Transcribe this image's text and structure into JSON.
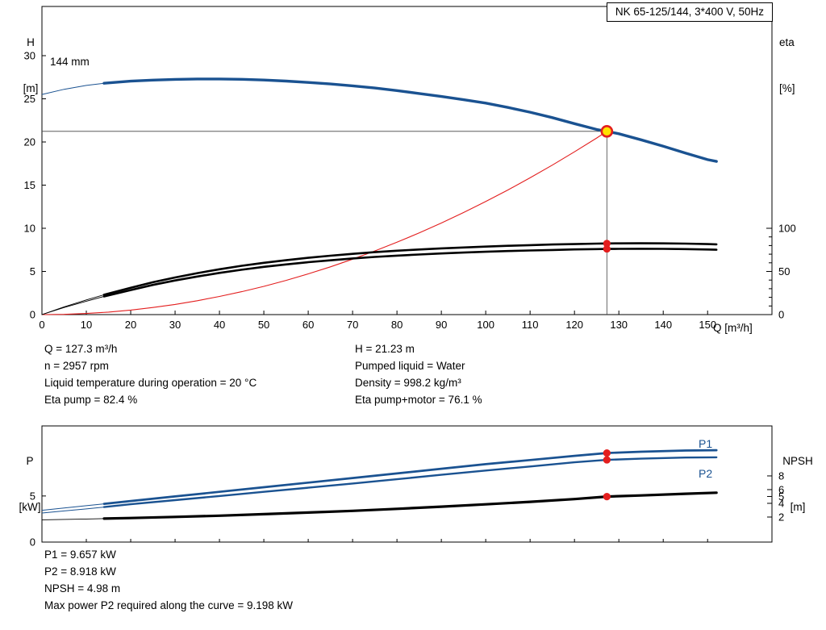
{
  "title_box": {
    "label": "NK 65-125/144, 3*400 V, 50Hz"
  },
  "colors": {
    "blue": "#1A5291",
    "red": "#E31E1E",
    "black": "#000000",
    "yellow": "#FFE200",
    "guide": "#444444"
  },
  "axis_labels": {
    "h": "H",
    "h_unit": "[m]",
    "eta": "eta",
    "eta_unit": "[%]",
    "q": "Q [m³/h]",
    "p": "P",
    "p_unit": "[kW]",
    "npsh": "NPSH",
    "npsh_unit": "[m]"
  },
  "curve_labels": {
    "impeller": "144 mm",
    "p1": "P1",
    "p2": "P2"
  },
  "duty_info": {
    "left": [
      "Q = 127.3 m³/h",
      "n = 2957 rpm",
      "Liquid temperature during operation = 20 °C",
      "Eta pump = 82.4 %"
    ],
    "right": [
      "H = 21.23 m",
      "Pumped liquid = Water",
      "Density = 998.2 kg/m³",
      "Eta pump+motor = 76.1 %"
    ]
  },
  "results_info": [
    "P1 = 9.657 kW",
    "P2 = 8.918 kW",
    "NPSH = 4.98 m",
    "Max power P2 required along the curve = 9.198 kW"
  ],
  "chart_data": [
    {
      "id": "qh-eta",
      "type": "line",
      "title": "NK 65-125/144, 3*400 V, 50Hz",
      "x_axis": {
        "label": "Q [m³/h]",
        "range": [
          0,
          164.5
        ],
        "ticks": [
          0,
          10,
          20,
          30,
          40,
          50,
          60,
          70,
          80,
          90,
          100,
          110,
          120,
          130,
          140,
          150
        ]
      },
      "y_left": {
        "label": "H [m]",
        "range": [
          0,
          35.7
        ],
        "ticks": [
          0,
          5,
          10,
          15,
          20,
          25,
          30
        ]
      },
      "y_right": {
        "label": "eta [%]",
        "ticks": [
          0,
          50,
          100
        ],
        "minor_step": 10,
        "h_per_percent": 0.1
      },
      "duty_point": {
        "q": 127.3,
        "h": 21.23
      },
      "series": [
        {
          "name": "head-144mm",
          "label": "144 mm",
          "color": "blue",
          "axis": "left",
          "thin": 1,
          "thick": 3.4,
          "thick_from": 14,
          "points": [
            [
              0,
              25.5
            ],
            [
              5,
              26.1
            ],
            [
              10,
              26.55
            ],
            [
              14,
              26.8
            ],
            [
              20,
              27.05
            ],
            [
              25,
              27.17
            ],
            [
              30,
              27.25
            ],
            [
              35,
              27.3
            ],
            [
              40,
              27.3
            ],
            [
              45,
              27.26
            ],
            [
              50,
              27.18
            ],
            [
              55,
              27.06
            ],
            [
              60,
              26.9
            ],
            [
              65,
              26.72
            ],
            [
              70,
              26.5
            ],
            [
              75,
              26.25
            ],
            [
              80,
              25.95
            ],
            [
              85,
              25.62
            ],
            [
              90,
              25.27
            ],
            [
              95,
              24.9
            ],
            [
              100,
              24.5
            ],
            [
              105,
              24.0
            ],
            [
              110,
              23.45
            ],
            [
              115,
              22.82
            ],
            [
              120,
              22.12
            ],
            [
              125,
              21.45
            ],
            [
              127.3,
              21.23
            ],
            [
              130,
              20.95
            ],
            [
              135,
              20.25
            ],
            [
              140,
              19.5
            ],
            [
              145,
              18.72
            ],
            [
              150,
              17.95
            ],
            [
              152,
              17.75
            ]
          ]
        },
        {
          "name": "iso-efficiency-parabola",
          "color": "red",
          "axis": "left",
          "thin": 1.1,
          "points": [
            [
              0,
              0
            ],
            [
              5,
              0.03
            ],
            [
              10,
              0.13
            ],
            [
              15,
              0.29
            ],
            [
              20,
              0.52
            ],
            [
              25,
              0.82
            ],
            [
              30,
              1.18
            ],
            [
              35,
              1.61
            ],
            [
              40,
              2.1
            ],
            [
              45,
              2.65
            ],
            [
              50,
              3.27
            ],
            [
              55,
              3.96
            ],
            [
              60,
              4.72
            ],
            [
              65,
              5.53
            ],
            [
              70,
              6.42
            ],
            [
              75,
              7.37
            ],
            [
              80,
              8.38
            ],
            [
              85,
              9.46
            ],
            [
              90,
              10.61
            ],
            [
              95,
              11.82
            ],
            [
              100,
              13.1
            ],
            [
              105,
              14.44
            ],
            [
              110,
              15.85
            ],
            [
              115,
              17.32
            ],
            [
              120,
              18.86
            ],
            [
              125,
              20.46
            ],
            [
              127.3,
              21.23
            ]
          ]
        },
        {
          "name": "eta-pump",
          "color": "black",
          "axis": "right",
          "thin": 0.9,
          "thick": 2.6,
          "thick_from": 14,
          "marker": {
            "q": 127.3,
            "v": 82.4
          },
          "points": [
            [
              0,
              0
            ],
            [
              5,
              9
            ],
            [
              10,
              17
            ],
            [
              14,
              23
            ],
            [
              20,
              31
            ],
            [
              25,
              37.5
            ],
            [
              30,
              43
            ],
            [
              35,
              48
            ],
            [
              40,
              52.5
            ],
            [
              45,
              56.5
            ],
            [
              50,
              60
            ],
            [
              55,
              63
            ],
            [
              60,
              65.8
            ],
            [
              65,
              68.2
            ],
            [
              70,
              70.4
            ],
            [
              75,
              72.3
            ],
            [
              80,
              74
            ],
            [
              85,
              75.4
            ],
            [
              90,
              76.7
            ],
            [
              95,
              77.8
            ],
            [
              100,
              78.8
            ],
            [
              105,
              79.7
            ],
            [
              110,
              80.5
            ],
            [
              115,
              81.2
            ],
            [
              120,
              81.7
            ],
            [
              125,
              82.2
            ],
            [
              127.3,
              82.4
            ],
            [
              130,
              82.5
            ],
            [
              135,
              82.6
            ],
            [
              140,
              82.5
            ],
            [
              145,
              82.2
            ],
            [
              150,
              81.7
            ],
            [
              152,
              81.4
            ]
          ]
        },
        {
          "name": "eta-pump-motor",
          "color": "black",
          "axis": "right",
          "thin": 0.9,
          "thick": 2.6,
          "thick_from": 14,
          "marker": {
            "q": 127.3,
            "v": 76.1
          },
          "points": [
            [
              0,
              0
            ],
            [
              5,
              8.2
            ],
            [
              10,
              15.5
            ],
            [
              14,
              21
            ],
            [
              20,
              28.4
            ],
            [
              25,
              34.4
            ],
            [
              30,
              39.5
            ],
            [
              35,
              44.1
            ],
            [
              40,
              48.3
            ],
            [
              45,
              52
            ],
            [
              50,
              55.3
            ],
            [
              55,
              58.1
            ],
            [
              60,
              60.7
            ],
            [
              65,
              62.9
            ],
            [
              70,
              65
            ],
            [
              75,
              66.8
            ],
            [
              80,
              68.3
            ],
            [
              85,
              69.6
            ],
            [
              90,
              70.8
            ],
            [
              95,
              71.9
            ],
            [
              100,
              72.8
            ],
            [
              105,
              73.6
            ],
            [
              110,
              74.3
            ],
            [
              115,
              74.9
            ],
            [
              120,
              75.5
            ],
            [
              125,
              75.9
            ],
            [
              127.3,
              76.1
            ],
            [
              130,
              76.2
            ],
            [
              135,
              76.3
            ],
            [
              140,
              76.2
            ],
            [
              145,
              75.9
            ],
            [
              150,
              75.4
            ],
            [
              152,
              75.1
            ]
          ]
        }
      ]
    },
    {
      "id": "power-npsh",
      "type": "line",
      "x_axis": {
        "range": [
          0,
          164.5
        ],
        "ticks": [
          0,
          10,
          20,
          30,
          40,
          50,
          60,
          70,
          80,
          90,
          100,
          110,
          120,
          130,
          140,
          150
        ],
        "show_labels": false
      },
      "y_left": {
        "label": "P [kW]",
        "range": [
          0,
          12.6
        ],
        "ticks": [
          0,
          5
        ]
      },
      "y_right": {
        "label": "NPSH [m]",
        "range": [
          -1.65,
          15.29
        ],
        "ticks": [
          2,
          4,
          5,
          6,
          8
        ]
      },
      "series": [
        {
          "name": "p1",
          "label": "P1",
          "color": "blue",
          "axis": "left",
          "thin": 1,
          "thick": 2.7,
          "thick_from": 14,
          "marker": {
            "q": 127.3,
            "v": 9.657
          },
          "points": [
            [
              0,
              3.45
            ],
            [
              5,
              3.7
            ],
            [
              10,
              3.95
            ],
            [
              14,
              4.15
            ],
            [
              20,
              4.45
            ],
            [
              30,
              4.95
            ],
            [
              40,
              5.45
            ],
            [
              50,
              5.95
            ],
            [
              60,
              6.45
            ],
            [
              70,
              6.95
            ],
            [
              80,
              7.45
            ],
            [
              90,
              7.95
            ],
            [
              100,
              8.45
            ],
            [
              110,
              8.9
            ],
            [
              120,
              9.35
            ],
            [
              127.3,
              9.657
            ],
            [
              135,
              9.8
            ],
            [
              145,
              9.93
            ],
            [
              152,
              9.97
            ]
          ]
        },
        {
          "name": "p2",
          "label": "P2",
          "color": "blue",
          "axis": "left",
          "thin": 1,
          "thick": 2.4,
          "thick_from": 14,
          "marker": {
            "q": 127.3,
            "v": 8.918
          },
          "points": [
            [
              0,
              3.15
            ],
            [
              5,
              3.38
            ],
            [
              10,
              3.6
            ],
            [
              14,
              3.8
            ],
            [
              20,
              4.1
            ],
            [
              30,
              4.55
            ],
            [
              40,
              5.0
            ],
            [
              50,
              5.45
            ],
            [
              60,
              5.9
            ],
            [
              70,
              6.35
            ],
            [
              80,
              6.82
            ],
            [
              90,
              7.3
            ],
            [
              100,
              7.76
            ],
            [
              110,
              8.2
            ],
            [
              120,
              8.65
            ],
            [
              127.3,
              8.918
            ],
            [
              135,
              9.05
            ],
            [
              145,
              9.17
            ],
            [
              152,
              9.198
            ]
          ]
        },
        {
          "name": "npsh",
          "label": "NPSH",
          "color": "black",
          "axis": "right",
          "thin": 0.9,
          "thick": 3.2,
          "thick_from": 14,
          "marker": {
            "q": 127.3,
            "v": 4.98
          },
          "points": [
            [
              0,
              1.6
            ],
            [
              5,
              1.65
            ],
            [
              10,
              1.71
            ],
            [
              14,
              1.77
            ],
            [
              20,
              1.86
            ],
            [
              30,
              2.02
            ],
            [
              40,
              2.2
            ],
            [
              50,
              2.42
            ],
            [
              60,
              2.65
            ],
            [
              70,
              2.9
            ],
            [
              80,
              3.2
            ],
            [
              90,
              3.52
            ],
            [
              100,
              3.86
            ],
            [
              110,
              4.22
            ],
            [
              120,
              4.62
            ],
            [
              127.3,
              4.98
            ],
            [
              135,
              5.15
            ],
            [
              145,
              5.4
            ],
            [
              152,
              5.55
            ]
          ]
        }
      ]
    }
  ]
}
